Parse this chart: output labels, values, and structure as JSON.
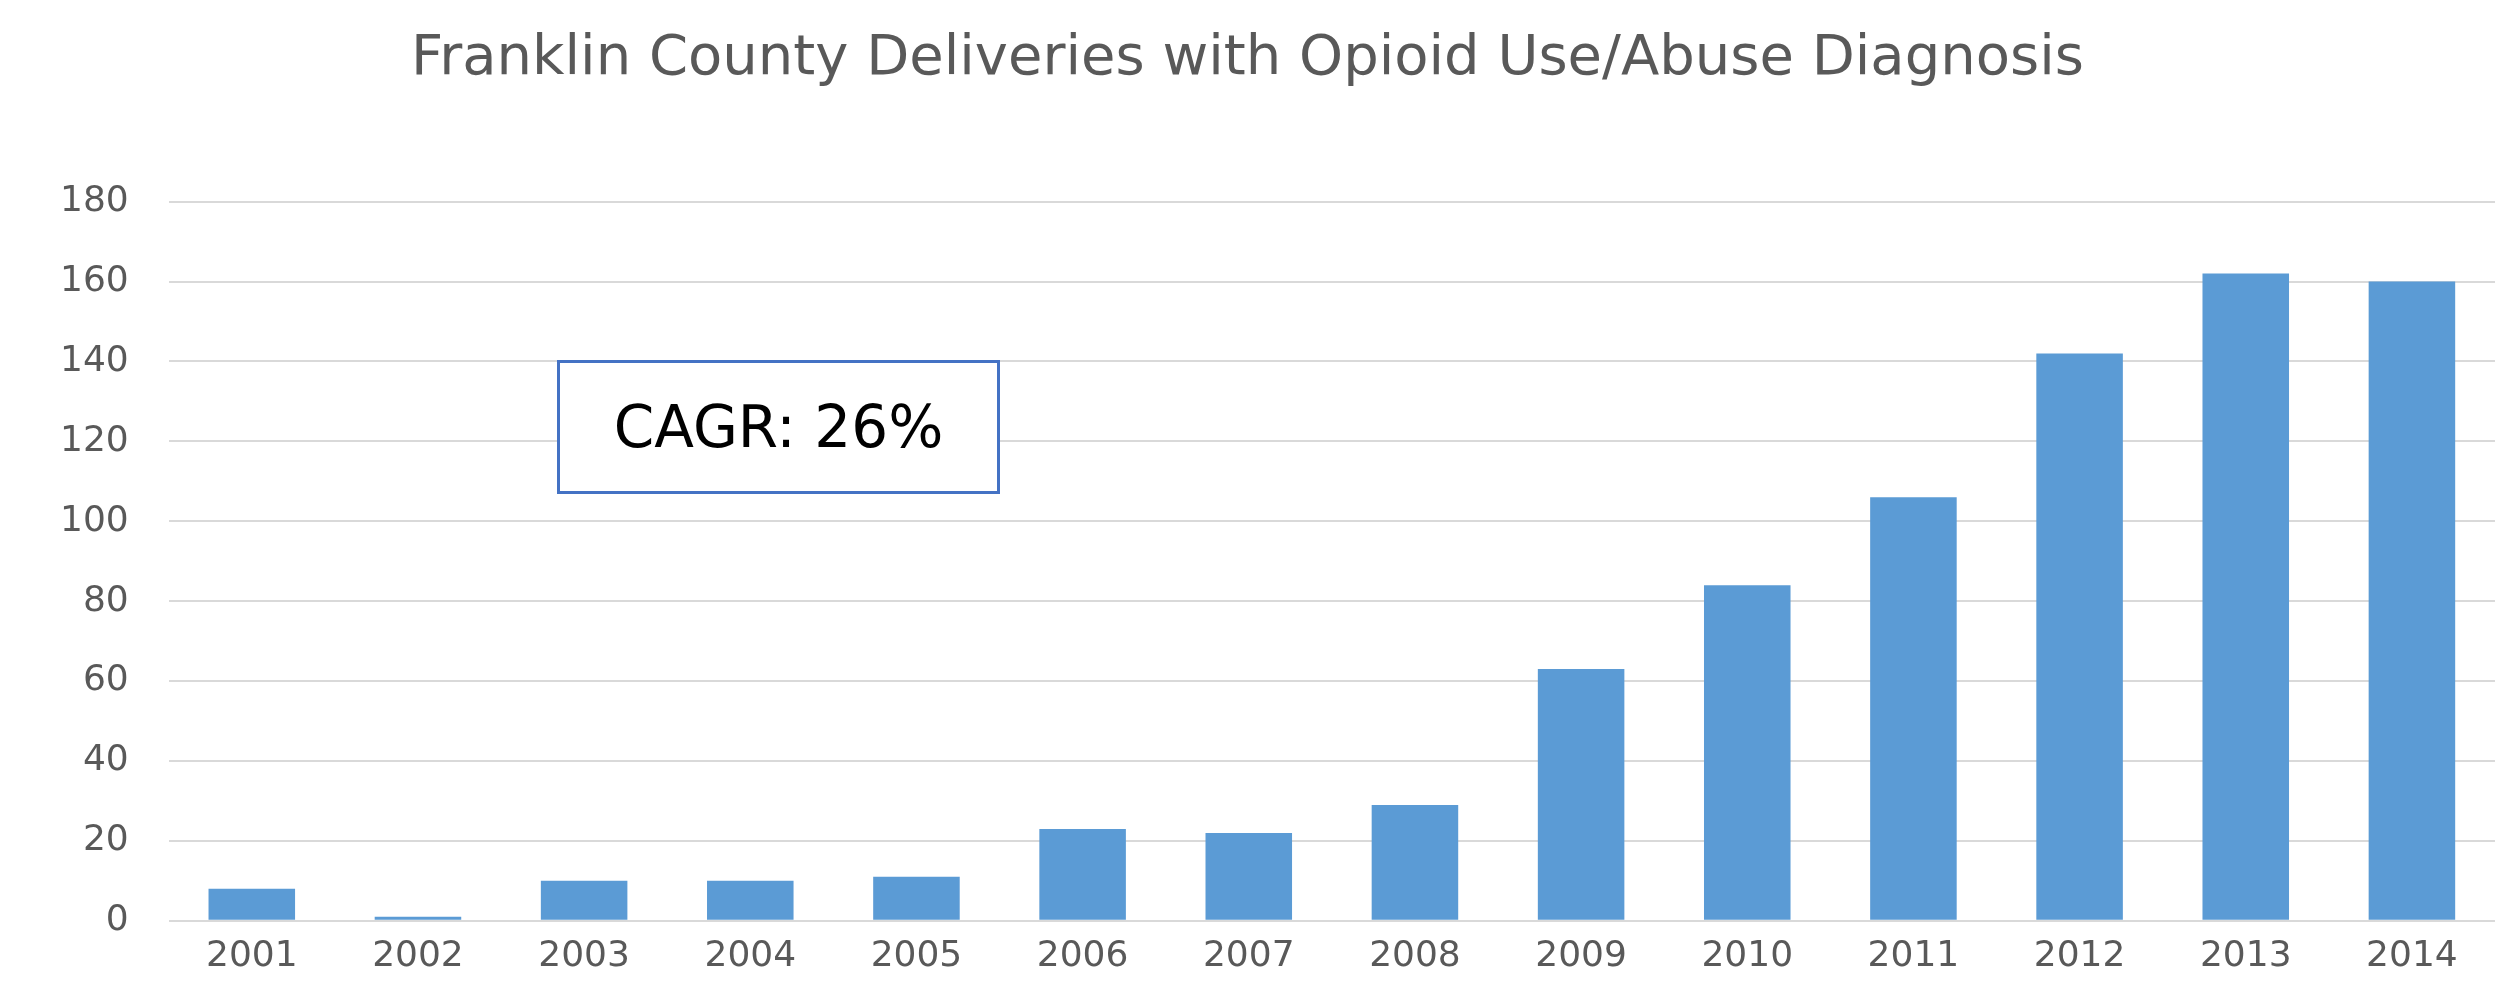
{
  "chart_data": {
    "type": "bar",
    "title": "Franklin County Deliveries with Opioid Use/Abuse Diagnosis",
    "categories": [
      "2001",
      "2002",
      "2003",
      "2004",
      "2005",
      "2006",
      "2007",
      "2008",
      "2009",
      "2010",
      "2011",
      "2012",
      "2013",
      "2014"
    ],
    "values": [
      8,
      1,
      10,
      10,
      11,
      23,
      22,
      29,
      63,
      84,
      106,
      142,
      162,
      160
    ],
    "color": "#5b9bd5",
    "ylim": [
      0,
      180
    ],
    "yticks": [
      0,
      20,
      40,
      60,
      80,
      100,
      120,
      140,
      160,
      180
    ],
    "grid": "y",
    "legend": false,
    "annotations": [
      "CAGR: 26%"
    ]
  }
}
